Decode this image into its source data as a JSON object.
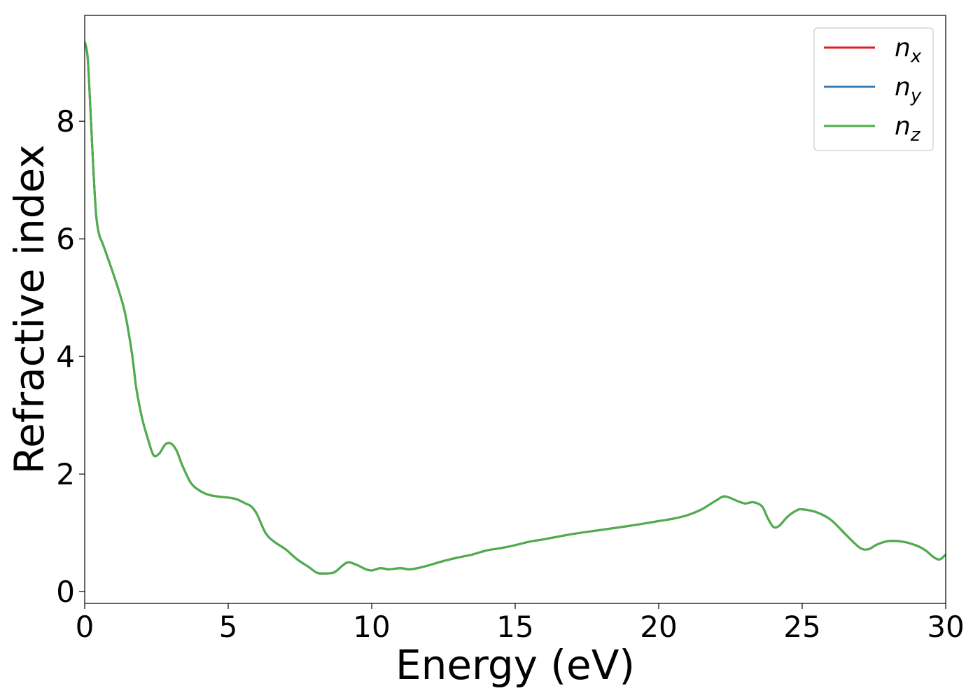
{
  "chart_data": {
    "type": "line",
    "title": "",
    "xlabel": "Energy (eV)",
    "ylabel": "Refractive index",
    "xlim": [
      0,
      30
    ],
    "ylim": [
      -0.2,
      9.8
    ],
    "xticks": [
      0,
      5,
      10,
      15,
      20,
      25,
      30
    ],
    "yticks": [
      0,
      2,
      4,
      6,
      8
    ],
    "grid": false,
    "legend": {
      "position": "top-right"
    },
    "x": [
      0,
      0.1,
      0.2,
      0.3,
      0.4,
      0.5,
      0.6,
      0.7,
      0.8,
      1.0,
      1.2,
      1.4,
      1.6,
      1.7,
      1.8,
      2.0,
      2.2,
      2.4,
      2.6,
      2.8,
      3.0,
      3.2,
      3.4,
      3.7,
      4.0,
      4.3,
      4.6,
      5.0,
      5.3,
      5.6,
      5.8,
      6.0,
      6.3,
      6.6,
      7.0,
      7.4,
      7.8,
      8.1,
      8.4,
      8.7,
      9.0,
      9.2,
      9.5,
      9.8,
      10.0,
      10.3,
      10.6,
      11.0,
      11.3,
      11.6,
      12.0,
      12.5,
      13.0,
      13.5,
      14.0,
      14.5,
      15.0,
      15.5,
      16.0,
      17.0,
      18.0,
      19.0,
      20.0,
      20.5,
      21.0,
      21.5,
      22.0,
      22.3,
      22.7,
      23.0,
      23.3,
      23.6,
      23.8,
      24.0,
      24.2,
      24.5,
      24.8,
      25.0,
      25.5,
      26.0,
      26.5,
      27.0,
      27.3,
      27.6,
      28.0,
      28.5,
      29.0,
      29.3,
      29.6,
      29.8,
      30.0
    ],
    "series": [
      {
        "name": "n_x",
        "label_base": "n",
        "label_sub": "x",
        "color": "#e41a1c",
        "values": [
          9.35,
          9.1,
          8.2,
          7.2,
          6.4,
          6.08,
          5.95,
          5.82,
          5.68,
          5.4,
          5.1,
          4.75,
          4.2,
          3.85,
          3.45,
          2.95,
          2.6,
          2.32,
          2.35,
          2.5,
          2.52,
          2.4,
          2.15,
          1.85,
          1.72,
          1.65,
          1.62,
          1.6,
          1.57,
          1.5,
          1.45,
          1.32,
          1.0,
          0.85,
          0.72,
          0.55,
          0.42,
          0.32,
          0.31,
          0.33,
          0.45,
          0.5,
          0.45,
          0.38,
          0.36,
          0.4,
          0.38,
          0.4,
          0.38,
          0.4,
          0.45,
          0.52,
          0.58,
          0.63,
          0.7,
          0.74,
          0.79,
          0.85,
          0.89,
          0.98,
          1.05,
          1.12,
          1.2,
          1.24,
          1.3,
          1.4,
          1.55,
          1.62,
          1.55,
          1.5,
          1.52,
          1.45,
          1.25,
          1.1,
          1.12,
          1.28,
          1.38,
          1.4,
          1.35,
          1.22,
          0.98,
          0.75,
          0.72,
          0.8,
          0.86,
          0.85,
          0.78,
          0.7,
          0.58,
          0.55,
          0.63
        ]
      },
      {
        "name": "n_y",
        "label_base": "n",
        "label_sub": "y",
        "color": "#377eb8",
        "values": [
          9.35,
          9.1,
          8.2,
          7.2,
          6.4,
          6.08,
          5.95,
          5.82,
          5.68,
          5.4,
          5.1,
          4.75,
          4.2,
          3.85,
          3.45,
          2.95,
          2.6,
          2.32,
          2.35,
          2.5,
          2.52,
          2.4,
          2.15,
          1.85,
          1.72,
          1.65,
          1.62,
          1.6,
          1.57,
          1.5,
          1.45,
          1.32,
          1.0,
          0.85,
          0.72,
          0.55,
          0.42,
          0.32,
          0.31,
          0.33,
          0.45,
          0.5,
          0.45,
          0.38,
          0.36,
          0.4,
          0.38,
          0.4,
          0.38,
          0.4,
          0.45,
          0.52,
          0.58,
          0.63,
          0.7,
          0.74,
          0.79,
          0.85,
          0.89,
          0.98,
          1.05,
          1.12,
          1.2,
          1.24,
          1.3,
          1.4,
          1.55,
          1.62,
          1.55,
          1.5,
          1.52,
          1.45,
          1.25,
          1.1,
          1.12,
          1.28,
          1.38,
          1.4,
          1.35,
          1.22,
          0.98,
          0.75,
          0.72,
          0.8,
          0.86,
          0.85,
          0.78,
          0.7,
          0.58,
          0.55,
          0.63
        ]
      },
      {
        "name": "n_z",
        "label_base": "n",
        "label_sub": "z",
        "color": "#4daf4a",
        "values": [
          9.35,
          9.1,
          8.2,
          7.2,
          6.4,
          6.08,
          5.95,
          5.82,
          5.68,
          5.4,
          5.1,
          4.75,
          4.2,
          3.85,
          3.45,
          2.95,
          2.6,
          2.32,
          2.35,
          2.5,
          2.52,
          2.4,
          2.15,
          1.85,
          1.72,
          1.65,
          1.62,
          1.6,
          1.57,
          1.5,
          1.45,
          1.32,
          1.0,
          0.85,
          0.72,
          0.55,
          0.42,
          0.32,
          0.31,
          0.33,
          0.45,
          0.5,
          0.45,
          0.38,
          0.36,
          0.4,
          0.38,
          0.4,
          0.38,
          0.4,
          0.45,
          0.52,
          0.58,
          0.63,
          0.7,
          0.74,
          0.79,
          0.85,
          0.89,
          0.98,
          1.05,
          1.12,
          1.2,
          1.24,
          1.3,
          1.4,
          1.55,
          1.62,
          1.55,
          1.5,
          1.52,
          1.45,
          1.25,
          1.1,
          1.12,
          1.28,
          1.38,
          1.4,
          1.35,
          1.22,
          0.98,
          0.75,
          0.72,
          0.8,
          0.86,
          0.85,
          0.78,
          0.7,
          0.58,
          0.55,
          0.63
        ]
      }
    ]
  }
}
